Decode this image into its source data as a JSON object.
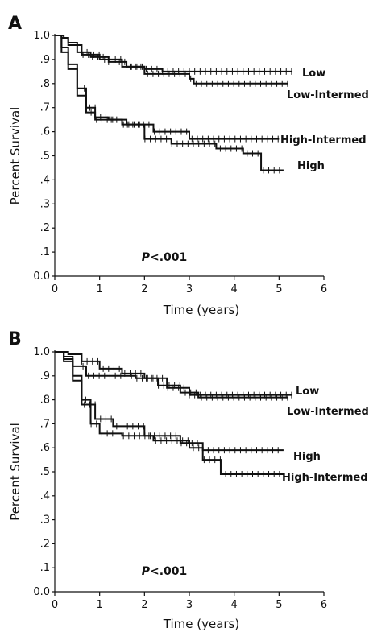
{
  "chart_data": [
    {
      "panel": "A",
      "type": "line",
      "title": "",
      "xlabel": "Time (years)",
      "ylabel": "Percent Survival",
      "xlim": [
        0,
        6
      ],
      "ylim": [
        0,
        1
      ],
      "x_ticks": [
        "0",
        "1",
        "2",
        "3",
        "4",
        "5",
        "6"
      ],
      "y_ticks": [
        "0.0",
        ".1",
        ".2",
        ".3",
        ".4",
        ".5",
        ".6",
        ".7",
        ".8",
        ".9",
        "1.0"
      ],
      "annotation": {
        "italic": "P",
        "rest": "<.001"
      },
      "series": [
        {
          "name": "Low",
          "points": [
            [
              0,
              1.0
            ],
            [
              0.2,
              0.99
            ],
            [
              0.3,
              0.97
            ],
            [
              0.5,
              0.93
            ],
            [
              0.8,
              0.91
            ],
            [
              1.2,
              0.89
            ],
            [
              1.6,
              0.87
            ],
            [
              2.0,
              0.86
            ],
            [
              2.4,
              0.85
            ],
            [
              5.3,
              0.85
            ]
          ]
        },
        {
          "name": "Low-Intermed",
          "points": [
            [
              0,
              1.0
            ],
            [
              0.15,
              0.99
            ],
            [
              0.3,
              0.96
            ],
            [
              0.6,
              0.92
            ],
            [
              1.0,
              0.9
            ],
            [
              1.5,
              0.87
            ],
            [
              2.0,
              0.84
            ],
            [
              3.0,
              0.82
            ],
            [
              3.1,
              0.8
            ],
            [
              5.2,
              0.8
            ]
          ]
        },
        {
          "name": "High-Intermed",
          "points": [
            [
              0,
              1.0
            ],
            [
              0.15,
              0.95
            ],
            [
              0.3,
              0.88
            ],
            [
              0.5,
              0.78
            ],
            [
              0.7,
              0.7
            ],
            [
              0.9,
              0.66
            ],
            [
              1.2,
              0.65
            ],
            [
              1.6,
              0.63
            ],
            [
              2.2,
              0.6
            ],
            [
              3.0,
              0.57
            ],
            [
              5.0,
              0.57
            ]
          ]
        },
        {
          "name": "High",
          "points": [
            [
              0,
              1.0
            ],
            [
              0.15,
              0.93
            ],
            [
              0.3,
              0.86
            ],
            [
              0.5,
              0.75
            ],
            [
              0.7,
              0.68
            ],
            [
              0.9,
              0.65
            ],
            [
              1.5,
              0.63
            ],
            [
              2.0,
              0.57
            ],
            [
              2.6,
              0.55
            ],
            [
              3.6,
              0.53
            ],
            [
              4.2,
              0.51
            ],
            [
              4.6,
              0.44
            ],
            [
              5.1,
              0.44
            ]
          ]
        }
      ]
    },
    {
      "panel": "B",
      "type": "line",
      "title": "",
      "xlabel": "Time (years)",
      "ylabel": "Percent Survival",
      "xlim": [
        0,
        6
      ],
      "ylim": [
        0,
        1
      ],
      "x_ticks": [
        "0",
        "1",
        "2",
        "3",
        "4",
        "5",
        "6"
      ],
      "y_ticks": [
        "0.0",
        ".1",
        ".2",
        ".3",
        ".4",
        ".5",
        ".6",
        ".7",
        ".8",
        ".9",
        "1.0"
      ],
      "annotation": {
        "italic": "P",
        "rest": "<.001"
      },
      "series": [
        {
          "name": "Low",
          "points": [
            [
              0,
              1.0
            ],
            [
              0.3,
              0.99
            ],
            [
              0.6,
              0.96
            ],
            [
              1.0,
              0.93
            ],
            [
              1.5,
              0.91
            ],
            [
              2.0,
              0.89
            ],
            [
              2.5,
              0.85
            ],
            [
              3.0,
              0.82
            ],
            [
              5.3,
              0.82
            ]
          ]
        },
        {
          "name": "Low-Intermed",
          "points": [
            [
              0,
              1.0
            ],
            [
              0.2,
              0.98
            ],
            [
              0.4,
              0.94
            ],
            [
              0.7,
              0.9
            ],
            [
              1.2,
              0.9
            ],
            [
              1.8,
              0.89
            ],
            [
              2.3,
              0.86
            ],
            [
              2.8,
              0.83
            ],
            [
              3.2,
              0.81
            ],
            [
              5.2,
              0.81
            ]
          ]
        },
        {
          "name": "High",
          "points": [
            [
              0,
              1.0
            ],
            [
              0.2,
              0.96
            ],
            [
              0.4,
              0.88
            ],
            [
              0.6,
              0.78
            ],
            [
              0.9,
              0.72
            ],
            [
              1.3,
              0.69
            ],
            [
              2.0,
              0.65
            ],
            [
              2.8,
              0.62
            ],
            [
              3.3,
              0.59
            ],
            [
              5.1,
              0.59
            ]
          ]
        },
        {
          "name": "High-Intermed",
          "points": [
            [
              0,
              1.0
            ],
            [
              0.2,
              0.97
            ],
            [
              0.4,
              0.9
            ],
            [
              0.6,
              0.8
            ],
            [
              0.8,
              0.7
            ],
            [
              1.0,
              0.66
            ],
            [
              1.5,
              0.65
            ],
            [
              2.2,
              0.63
            ],
            [
              3.0,
              0.6
            ],
            [
              3.3,
              0.55
            ],
            [
              3.7,
              0.49
            ],
            [
              5.1,
              0.49
            ]
          ]
        }
      ]
    }
  ]
}
